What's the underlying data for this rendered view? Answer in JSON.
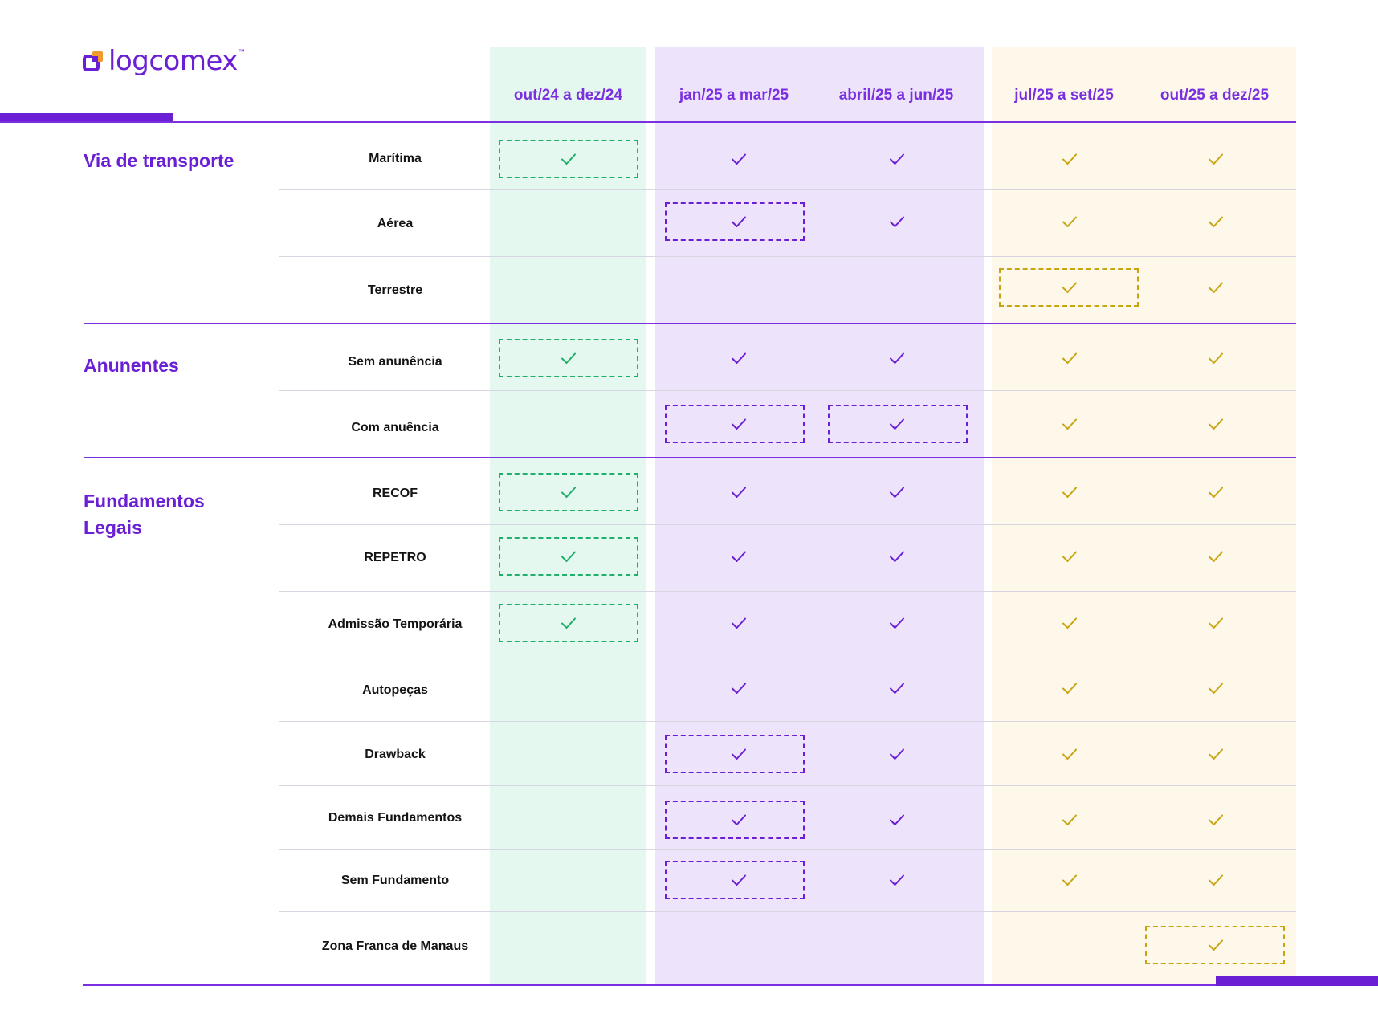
{
  "brand": {
    "name": "logcomex",
    "trademark": "™",
    "color": "#6a1fd4"
  },
  "periods": [
    {
      "label": "out/24 a dez/24",
      "group": "green"
    },
    {
      "label": "jan/25 a mar/25",
      "group": "purple"
    },
    {
      "label": "abril/25 a jun/25",
      "group": "purple"
    },
    {
      "label": "jul/25 a set/25",
      "group": "yellow"
    },
    {
      "label": "out/25 a dez/25",
      "group": "yellow"
    }
  ],
  "colors": {
    "green_check": "#1fae6b",
    "purple_check": "#6a1fd4",
    "yellow_check": "#c9a411",
    "green_bg": "#e5f8ef",
    "purple_bg": "#ede3fb",
    "yellow_bg": "#fdf8ea",
    "accent_line": "#7a2fe0"
  },
  "sections": [
    {
      "title_lines": [
        "Via de transporte"
      ],
      "rows": [
        {
          "label": "Marítima",
          "checks": [
            true,
            true,
            true,
            true,
            true
          ],
          "highlight": 0
        },
        {
          "label": "Aérea",
          "checks": [
            false,
            true,
            true,
            true,
            true
          ],
          "highlight": 1
        },
        {
          "label": "Terrestre",
          "checks": [
            false,
            false,
            false,
            true,
            true
          ],
          "highlight": 3
        }
      ]
    },
    {
      "title_lines": [
        "Anunentes"
      ],
      "rows": [
        {
          "label": "Sem anunência",
          "checks": [
            true,
            true,
            true,
            true,
            true
          ],
          "highlight": 0
        },
        {
          "label": "Com anuência",
          "checks": [
            false,
            true,
            true,
            true,
            true
          ],
          "highlight": [
            1,
            2
          ]
        }
      ]
    },
    {
      "title_lines": [
        "Fundamentos",
        "Legais"
      ],
      "rows": [
        {
          "label": "RECOF",
          "checks": [
            true,
            true,
            true,
            true,
            true
          ],
          "highlight": 0
        },
        {
          "label": "REPETRO",
          "checks": [
            true,
            true,
            true,
            true,
            true
          ],
          "highlight": 0
        },
        {
          "label": "Admissão Temporária",
          "checks": [
            true,
            true,
            true,
            true,
            true
          ],
          "highlight": 0
        },
        {
          "label": "Autopeças",
          "checks": [
            false,
            true,
            true,
            true,
            true
          ],
          "highlight": null
        },
        {
          "label": "Drawback",
          "checks": [
            false,
            true,
            true,
            true,
            true
          ],
          "highlight": 1
        },
        {
          "label": "Demais Fundamentos",
          "checks": [
            false,
            true,
            true,
            true,
            true
          ],
          "highlight": 1
        },
        {
          "label": "Sem Fundamento",
          "checks": [
            false,
            true,
            true,
            true,
            true
          ],
          "highlight": 1
        },
        {
          "label": "Zona Franca de Manaus",
          "checks": [
            false,
            false,
            false,
            false,
            true
          ],
          "highlight": 4
        }
      ]
    }
  ]
}
